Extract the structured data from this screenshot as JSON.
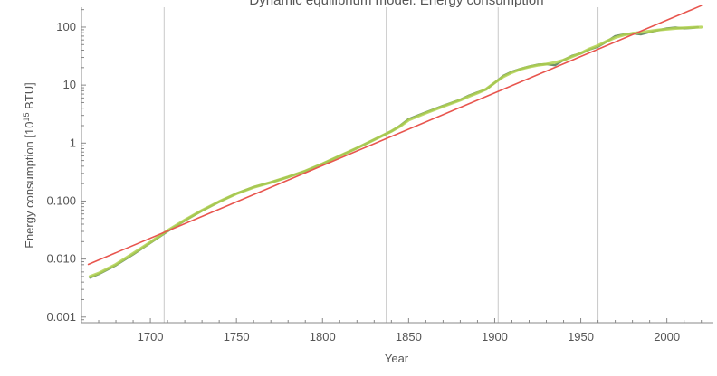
{
  "chart_data": {
    "type": "line",
    "title": "Dynamic equilibrium model: Energy consumption",
    "xlabel": "Year",
    "ylabel_main": "Energy consumption [10",
    "ylabel_exp": "15",
    "ylabel_tail": " BTU]",
    "xlim": [
      1660,
      2027
    ],
    "ylim": [
      0.0008,
      220
    ],
    "yscale": "log",
    "x_ticks": [
      1700,
      1750,
      1800,
      1850,
      1900,
      1950,
      2000
    ],
    "y_ticks": [
      {
        "value": 0.001,
        "label": "0.001"
      },
      {
        "value": 0.01,
        "label": "0.010"
      },
      {
        "value": 0.1,
        "label": "0.100"
      },
      {
        "value": 1,
        "label": "1"
      },
      {
        "value": 10,
        "label": "10"
      },
      {
        "value": 100,
        "label": "100"
      }
    ],
    "vertical_gridlines": [
      1708,
      1837,
      1902,
      1960
    ],
    "series": [
      {
        "role": "data",
        "color": "#6b8e6b",
        "points": [
          [
            1665,
            0.0048
          ],
          [
            1670,
            0.0055
          ],
          [
            1680,
            0.0078
          ],
          [
            1690,
            0.012
          ],
          [
            1700,
            0.019
          ],
          [
            1710,
            0.03
          ],
          [
            1720,
            0.046
          ],
          [
            1730,
            0.068
          ],
          [
            1740,
            0.097
          ],
          [
            1750,
            0.135
          ],
          [
            1760,
            0.175
          ],
          [
            1770,
            0.21
          ],
          [
            1780,
            0.26
          ],
          [
            1790,
            0.33
          ],
          [
            1800,
            0.44
          ],
          [
            1810,
            0.6
          ],
          [
            1820,
            0.82
          ],
          [
            1830,
            1.15
          ],
          [
            1840,
            1.6
          ],
          [
            1845,
            2.0
          ],
          [
            1850,
            2.6
          ],
          [
            1860,
            3.4
          ],
          [
            1870,
            4.4
          ],
          [
            1880,
            5.6
          ],
          [
            1885,
            6.6
          ],
          [
            1890,
            7.5
          ],
          [
            1895,
            8.4
          ],
          [
            1900,
            11
          ],
          [
            1905,
            14.5
          ],
          [
            1910,
            17
          ],
          [
            1915,
            19
          ],
          [
            1920,
            21
          ],
          [
            1925,
            22.5
          ],
          [
            1930,
            23
          ],
          [
            1935,
            22
          ],
          [
            1940,
            27
          ],
          [
            1945,
            32
          ],
          [
            1950,
            35
          ],
          [
            1955,
            41
          ],
          [
            1960,
            46
          ],
          [
            1965,
            56
          ],
          [
            1970,
            70
          ],
          [
            1975,
            75
          ],
          [
            1980,
            78
          ],
          [
            1985,
            75
          ],
          [
            1990,
            82
          ],
          [
            1995,
            88
          ],
          [
            2000,
            95
          ],
          [
            2005,
            98
          ],
          [
            2010,
            95
          ],
          [
            2015,
            97
          ],
          [
            2018,
            100
          ]
        ]
      },
      {
        "role": "model",
        "color": "#b2d24f",
        "points": [
          [
            1665,
            0.005
          ],
          [
            1670,
            0.0057
          ],
          [
            1680,
            0.0081
          ],
          [
            1690,
            0.0125
          ],
          [
            1700,
            0.0195
          ],
          [
            1710,
            0.031
          ],
          [
            1720,
            0.047
          ],
          [
            1730,
            0.069
          ],
          [
            1740,
            0.098
          ],
          [
            1750,
            0.134
          ],
          [
            1760,
            0.173
          ],
          [
            1770,
            0.21
          ],
          [
            1780,
            0.26
          ],
          [
            1790,
            0.33
          ],
          [
            1800,
            0.44
          ],
          [
            1810,
            0.6
          ],
          [
            1820,
            0.82
          ],
          [
            1830,
            1.14
          ],
          [
            1840,
            1.6
          ],
          [
            1845,
            1.95
          ],
          [
            1850,
            2.5
          ],
          [
            1860,
            3.3
          ],
          [
            1870,
            4.3
          ],
          [
            1880,
            5.5
          ],
          [
            1885,
            6.4
          ],
          [
            1890,
            7.3
          ],
          [
            1895,
            8.5
          ],
          [
            1900,
            11
          ],
          [
            1905,
            14
          ],
          [
            1910,
            16.5
          ],
          [
            1915,
            18.8
          ],
          [
            1920,
            20.5
          ],
          [
            1925,
            22
          ],
          [
            1930,
            23
          ],
          [
            1935,
            24.5
          ],
          [
            1940,
            27
          ],
          [
            1945,
            31
          ],
          [
            1950,
            35.5
          ],
          [
            1955,
            42
          ],
          [
            1960,
            48
          ],
          [
            1965,
            57
          ],
          [
            1970,
            66
          ],
          [
            1975,
            73
          ],
          [
            1980,
            78
          ],
          [
            1985,
            81
          ],
          [
            1990,
            85
          ],
          [
            1995,
            89
          ],
          [
            2000,
            92
          ],
          [
            2005,
            95
          ],
          [
            2010,
            97
          ],
          [
            2015,
            99
          ],
          [
            2020,
            100
          ]
        ]
      },
      {
        "role": "trend",
        "color": "#e8554e",
        "points": [
          [
            1664,
            0.0081
          ],
          [
            2020,
            235
          ]
        ]
      }
    ]
  }
}
